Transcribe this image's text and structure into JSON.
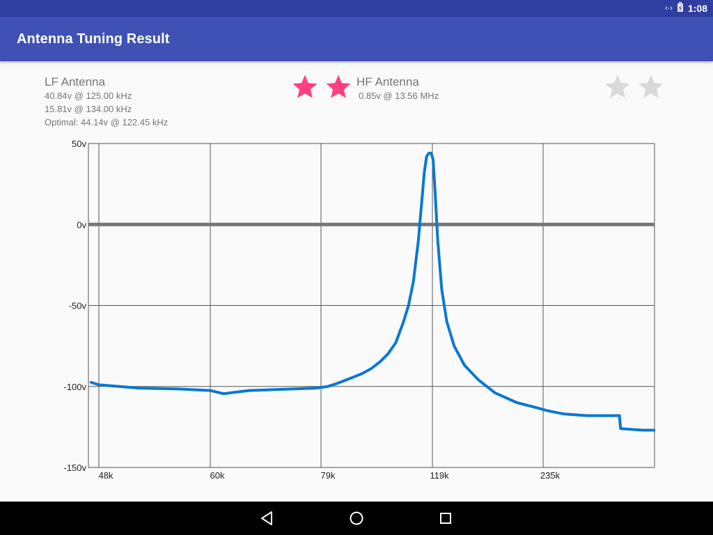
{
  "status_bar": {
    "time": "1:08"
  },
  "app_bar": {
    "title": "Antenna Tuning Result"
  },
  "lf_antenna": {
    "name": "LF Antenna",
    "lines": [
      "40.84v @ 125.00 kHz",
      "15.81v @ 134.00 kHz",
      "Optimal: 44.14v @ 122.45 kHz"
    ],
    "rating": {
      "filled": 2,
      "total": 2
    }
  },
  "hf_antenna": {
    "name": "HF Antenna",
    "lines": [
      "0.85v @ 13.56 MHz"
    ],
    "rating": {
      "filled": 0,
      "total": 2
    }
  },
  "colors": {
    "accent_star": "#ff4081",
    "empty_star": "#d9d9d9",
    "curve": "#0a78d0",
    "zero_line": "#757575",
    "primary": "#3f51b5",
    "primary_dark": "#303f9f"
  },
  "chart_data": {
    "type": "line",
    "title": "",
    "xlabel": "",
    "ylabel": "",
    "x_axis": "frequency (kHz)",
    "x_tick_labels": [
      "48k",
      "60k",
      "79k",
      "119k",
      "235k"
    ],
    "y_tick_labels": [
      "50v",
      "0v",
      "-50v",
      "-100v",
      "-150v"
    ],
    "y_ticks": [
      50,
      0,
      -50,
      -100,
      -150
    ],
    "ylim": [
      -150,
      50
    ],
    "grid": true,
    "zero_line": true,
    "series": [
      {
        "points": [
          [
            46.5,
            -97.5
          ],
          [
            48,
            -99
          ],
          [
            52,
            -101
          ],
          [
            56,
            -101.5
          ],
          [
            60,
            -102.5
          ],
          [
            62,
            -104.5
          ],
          [
            64,
            -103.5
          ],
          [
            66,
            -102.5
          ],
          [
            70,
            -102
          ],
          [
            74,
            -101.5
          ],
          [
            78,
            -101
          ],
          [
            81,
            -100
          ],
          [
            84,
            -98
          ],
          [
            88,
            -95
          ],
          [
            92,
            -92
          ],
          [
            95,
            -89
          ],
          [
            98,
            -85
          ],
          [
            101,
            -80
          ],
          [
            104,
            -73
          ],
          [
            107,
            -60
          ],
          [
            109,
            -50
          ],
          [
            111,
            -35
          ],
          [
            113,
            -10
          ],
          [
            114.5,
            15
          ],
          [
            115.5,
            32
          ],
          [
            116.5,
            42
          ],
          [
            117.5,
            44
          ],
          [
            118.5,
            44
          ],
          [
            119.5,
            40
          ],
          [
            121,
            20
          ],
          [
            123,
            -10
          ],
          [
            126,
            -40
          ],
          [
            130,
            -60
          ],
          [
            136,
            -75
          ],
          [
            145,
            -87
          ],
          [
            158,
            -96
          ],
          [
            175,
            -104
          ],
          [
            200,
            -110
          ],
          [
            225,
            -113
          ],
          [
            240,
            -115
          ],
          [
            260,
            -117
          ],
          [
            290,
            -118
          ],
          [
            320,
            -118
          ],
          [
            340,
            -118
          ],
          [
            342,
            -126
          ],
          [
            380,
            -127
          ],
          [
            402,
            -127
          ]
        ]
      }
    ]
  }
}
